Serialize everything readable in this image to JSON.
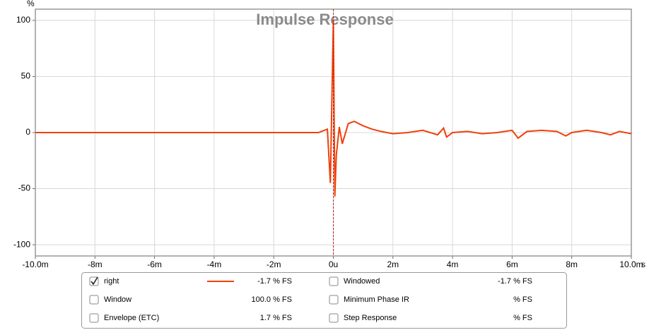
{
  "chart_data": {
    "type": "line",
    "title": "Impulse Response",
    "y_unit": "%",
    "x_unit": "s",
    "x": [
      -0.01,
      -0.0005,
      -0.0002,
      -0.0001,
      0,
      5e-05,
      0.0001,
      0.0002,
      0.0003,
      0.0005,
      0.0007,
      0.001,
      0.0013,
      0.0016,
      0.002,
      0.0025,
      0.003,
      0.0035,
      0.0037,
      0.0038,
      0.004,
      0.0045,
      0.005,
      0.0055,
      0.006,
      0.0062,
      0.0065,
      0.007,
      0.0075,
      0.0078,
      0.008,
      0.0085,
      0.009,
      0.0093,
      0.0096,
      0.01
    ],
    "series": [
      {
        "name": "right",
        "color": "#f0400a",
        "values": [
          0,
          0,
          3,
          -45,
          100,
          -57,
          -20,
          5,
          -10,
          8,
          10,
          6,
          3,
          1,
          -1,
          0,
          2,
          -2,
          4,
          -4,
          0,
          1,
          -1,
          0,
          2,
          -5,
          1,
          2,
          1,
          -3,
          0,
          2,
          0,
          -2,
          1,
          -1
        ]
      }
    ],
    "xlim": [
      -0.01,
      0.01
    ],
    "xticks": [
      {
        "value": -0.01,
        "label": "-10.0m"
      },
      {
        "value": -0.008,
        "label": "-8m"
      },
      {
        "value": -0.006,
        "label": "-6m"
      },
      {
        "value": -0.004,
        "label": "-4m"
      },
      {
        "value": -0.002,
        "label": "-2m"
      },
      {
        "value": 0,
        "label": "0u"
      },
      {
        "value": 0.002,
        "label": "2m"
      },
      {
        "value": 0.004,
        "label": "4m"
      },
      {
        "value": 0.006,
        "label": "6m"
      },
      {
        "value": 0.008,
        "label": "8m"
      },
      {
        "value": 0.01,
        "label": "10.0m"
      }
    ],
    "ylim": [
      -110,
      110
    ],
    "yticks": [
      100,
      50,
      0,
      -50,
      -100
    ],
    "grid": true,
    "panel": [
      {
        "label": "right",
        "value": "-1.7 % FS",
        "color": "#d03010",
        "checked": true,
        "sample": true
      },
      {
        "label": "Windowed",
        "value": "-1.7 % FS",
        "color": "#e05020",
        "checked": false
      },
      {
        "label": "Window",
        "value": "100.0 % FS",
        "color": "#1a1ab0",
        "checked": false
      },
      {
        "label": "Minimum Phase IR",
        "value": "% FS",
        "color": "#999999",
        "checked": false
      },
      {
        "label": "Envelope (ETC)",
        "value": "1.7 % FS",
        "color": "#a02010",
        "checked": false
      },
      {
        "label": "Step Response",
        "value": "% FS",
        "color": "#902010",
        "checked": false
      }
    ]
  }
}
